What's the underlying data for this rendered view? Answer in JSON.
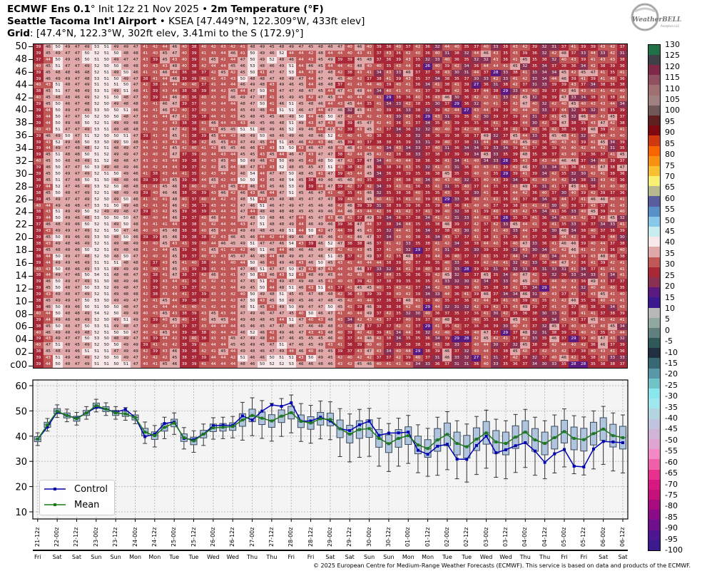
{
  "header": {
    "line1_bold_a": "ECMWF Ens 0.1",
    "line1_deg": "°",
    "line1_mid": " Init 12z 21 Nov 2025 • ",
    "line1_bold_b": "2m Temperature (°F)",
    "line2_bold": "Seattle Tacoma Int'l Airport",
    "line2_rest": " • KSEA [47.449°N, 122.309°W, 433ft elev]",
    "line3_bold": "Grid",
    "line3_rest": ": [47.4°N, 122.3°W, 302ft elev, 3.41mi to the S (172.9)°]"
  },
  "logo": {
    "text": "WeatherBELL",
    "sub": "Analytics LLC"
  },
  "footer": "© 2025 European Centre for Medium-Range Weather Forecasts (ECMWF). This service is based on data and products of the ECMWF.",
  "chart_data": [
    {
      "type": "heatmap",
      "title": "Ensemble member 2m temperature (°F)",
      "row_tick_labels": [
        "50",
        "48",
        "46",
        "44",
        "42",
        "40",
        "38",
        "36",
        "34",
        "32",
        "30",
        "28",
        "26",
        "24",
        "22",
        "20",
        "18",
        "16",
        "14",
        "12",
        "10",
        "08",
        "06",
        "04",
        "02",
        "c00"
      ],
      "rows": 51,
      "columns": 61,
      "colorbar": {
        "ticks": [
          130,
          125,
          120,
          115,
          110,
          105,
          100,
          95,
          90,
          85,
          80,
          75,
          70,
          65,
          60,
          55,
          50,
          45,
          40,
          35,
          30,
          25,
          20,
          15,
          10,
          5,
          0,
          -5,
          -10,
          -15,
          -20,
          -25,
          -30,
          -35,
          -40,
          -45,
          -50,
          -55,
          -60,
          -65,
          -70,
          -75,
          -80,
          -85,
          -90,
          -95,
          -100
        ],
        "min": -100,
        "max": 130,
        "step": 5,
        "colors": [
          "#3a1a8c",
          "#4e1690",
          "#6e108c",
          "#8a0a88",
          "#a80a80",
          "#c4107a",
          "#d81880",
          "#e8308e",
          "#f060a8",
          "#f488c4",
          "#e0a4d0",
          "#d0b4d8",
          "#c0c4e0",
          "#b4d4e0",
          "#a0e8f0",
          "#88e8ec",
          "#70c4c8",
          "#5898a8",
          "#386874",
          "#203040",
          "#305858",
          "#608080",
          "#90a8a0",
          "#b8b8b8",
          "#3a1890",
          "#5a1a80",
          "#8a3050",
          "#a82838",
          "#c05858",
          "#e0a8a8",
          "#f8e8ea",
          "#c8ecf0",
          "#88c8e8",
          "#5890c8",
          "#5a5ca0",
          "#b8b890",
          "#f8f070",
          "#f8c030",
          "#f89010",
          "#f86400",
          "#d03810",
          "#800810",
          "#602020",
          "#705858",
          "#a08080",
          "#a07070",
          "#905060",
          "#802848",
          "#404048",
          "#207048"
        ]
      }
    },
    {
      "type": "box-line",
      "ylim": [
        10,
        62
      ],
      "yticks": [
        10,
        20,
        30,
        40,
        50,
        60
      ],
      "grid": true,
      "legend_placement": "bottom-left",
      "series": [
        {
          "name": "Control",
          "color": "#0000b0",
          "values": [
            38.8,
            43.6,
            49.6,
            48.2,
            47.1,
            49.2,
            51.4,
            50.7,
            49.5,
            50.6,
            47.4,
            39.8,
            40.8,
            45.0,
            45.6,
            39.1,
            38.6,
            40.8,
            44.1,
            44.3,
            44.3,
            48.0,
            46.4,
            49.9,
            52.4,
            51.8,
            53.2,
            45.9,
            46.0,
            47.5,
            46.0,
            42.9,
            42.2,
            44.5,
            45.9,
            40.3,
            41.2,
            41.3,
            41.6,
            34.4,
            32.8,
            36.0,
            36.8,
            30.9,
            30.8,
            36.3,
            40.0,
            33.4,
            34.6,
            36.2,
            37.4,
            34.1,
            29.6,
            33.0,
            34.7,
            28.1,
            27.8,
            34.9,
            37.9,
            37.7,
            37.4
          ]
        },
        {
          "name": "Mean",
          "color": "#1a7a1a",
          "values": [
            38.8,
            44.5,
            49.9,
            48.2,
            46.9,
            49.2,
            52.1,
            50.7,
            49.2,
            48.8,
            47.4,
            41.6,
            40.2,
            43.5,
            45.2,
            39.4,
            38.1,
            40.8,
            43.3,
            43.5,
            43.8,
            46.4,
            48.2,
            47.1,
            46.0,
            47.9,
            49.3,
            45.9,
            45.2,
            46.9,
            46.6,
            42.9,
            40.8,
            42.6,
            43.0,
            39.1,
            37.0,
            39.1,
            40.2,
            36.5,
            35.1,
            38.5,
            40.7,
            37.1,
            35.8,
            38.8,
            41.3,
            37.7,
            37.1,
            39.6,
            41.6,
            38.5,
            37.1,
            39.4,
            41.8,
            39.1,
            38.6,
            41.0,
            42.8,
            40.2,
            39.4
          ]
        }
      ],
      "box_iqr_half": [
        1,
        1,
        1,
        1,
        1,
        1,
        1,
        1,
        1,
        1,
        1,
        1.5,
        1.5,
        1.5,
        1.5,
        1.5,
        1.5,
        1.5,
        1.5,
        1.5,
        1.5,
        2.5,
        2.5,
        2.5,
        2.5,
        2.5,
        2.5,
        2.5,
        2.5,
        2.5,
        2.5,
        3.5,
        3.5,
        3.5,
        3.5,
        3.5,
        3.5,
        3.5,
        3.5,
        3.5,
        3.5,
        4.5,
        4.5,
        4.5,
        4.5,
        4.5,
        4.5,
        4.5,
        4.5,
        4.5,
        4.5,
        4.5,
        4.5,
        4.5,
        4.5,
        4.5,
        4.5,
        4.5,
        4.5,
        4.5,
        4.5
      ],
      "whisker_low": [
        2.5,
        2.5,
        2.5,
        2.5,
        2.5,
        2.5,
        2.5,
        2.5,
        2.5,
        2.5,
        2.5,
        4.5,
        4.5,
        4.5,
        4.5,
        4.5,
        4.5,
        4.5,
        4.5,
        4.5,
        4.5,
        8,
        8,
        8,
        8,
        8,
        8,
        8,
        8,
        8,
        8,
        11,
        11,
        11,
        11,
        11,
        11,
        11,
        11,
        11,
        11,
        14,
        14,
        14,
        14,
        14,
        14,
        14,
        14,
        14,
        14,
        14,
        14,
        14,
        14,
        14,
        14,
        14,
        14,
        14,
        14
      ],
      "whisker_high": [
        2.5,
        2.5,
        2.5,
        2.5,
        2.5,
        2.5,
        2.5,
        2.5,
        2.5,
        2.5,
        2.5,
        4,
        4,
        4,
        4,
        4,
        4,
        4,
        4,
        4,
        4,
        7,
        7,
        7,
        7,
        7,
        7,
        7,
        7,
        7,
        7,
        8,
        8,
        8,
        8,
        8,
        8,
        8,
        8,
        8,
        8,
        9,
        9,
        9,
        9,
        9,
        9,
        9,
        9,
        9,
        9,
        9,
        9,
        9,
        9,
        9,
        9,
        9,
        9,
        9,
        9
      ],
      "time_labels": [
        "21-12z",
        "22-00z",
        "22-12z",
        "23-00z",
        "23-12z",
        "24-00z",
        "24-12z",
        "25-00z",
        "25-12z",
        "26-00z",
        "26-12z",
        "27-00z",
        "27-12z",
        "28-00z",
        "28-12z",
        "29-00z",
        "29-12z",
        "30-00z",
        "30-12z",
        "01-00z",
        "01-12z",
        "02-00z",
        "02-12z",
        "03-00z",
        "03-12z",
        "04-00z",
        "04-12z",
        "05-00z",
        "05-12z",
        "06-00z",
        "06-12z"
      ],
      "day_labels": [
        "Fri",
        "Sat",
        "Sat",
        "Sun",
        "Sun",
        "Mon",
        "Mon",
        "Tue",
        "Tue",
        "Wed",
        "Wed",
        "Thu",
        "Thu",
        "Fri",
        "Fri",
        "Sat",
        "Sat",
        "Sun",
        "Sun",
        "Mon",
        "Mon",
        "Tue",
        "Tue",
        "Wed",
        "Wed",
        "Thu",
        "Thu",
        "Fri",
        "Fri",
        "Sat",
        "Sat"
      ]
    }
  ]
}
